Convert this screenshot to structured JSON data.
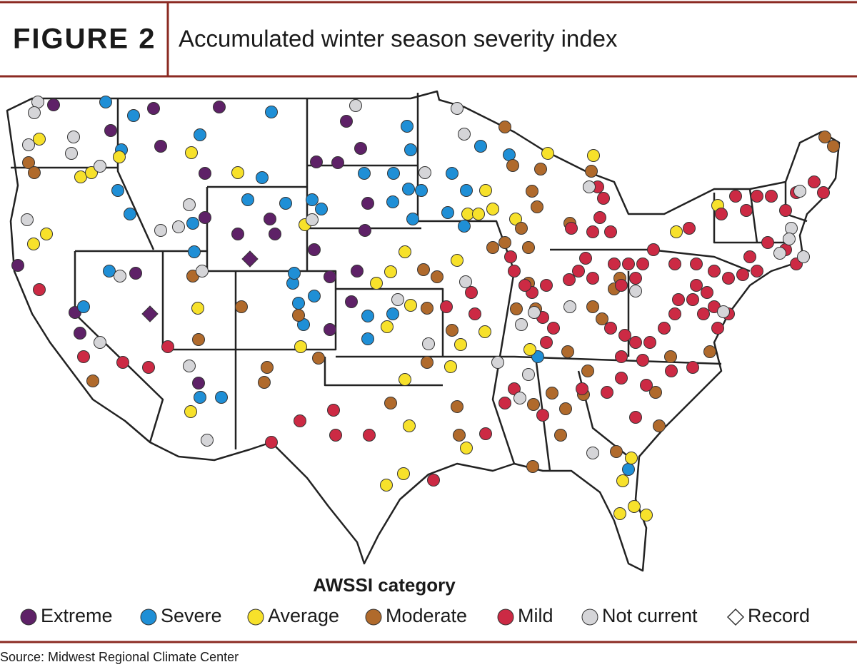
{
  "header": {
    "figure_label": "FIGURE 2",
    "title": "Accumulated winter season severity index"
  },
  "legend": {
    "title": "AWSSI category",
    "items": [
      {
        "label": "Extreme",
        "color": "#5e2167",
        "shape": "circle"
      },
      {
        "label": "Severe",
        "color": "#1f8fd6",
        "shape": "circle"
      },
      {
        "label": "Average",
        "color": "#f7e12b",
        "shape": "circle"
      },
      {
        "label": "Moderate",
        "color": "#b06a2c",
        "shape": "circle"
      },
      {
        "label": "Mild",
        "color": "#cc2a44",
        "shape": "circle"
      },
      {
        "label": "Not current",
        "color": "#d5d5d8",
        "shape": "circle"
      },
      {
        "label": "Record",
        "color": "#ffffff",
        "shape": "diamond"
      }
    ]
  },
  "source": "Source: Midwest Regional Climate Center"
}
